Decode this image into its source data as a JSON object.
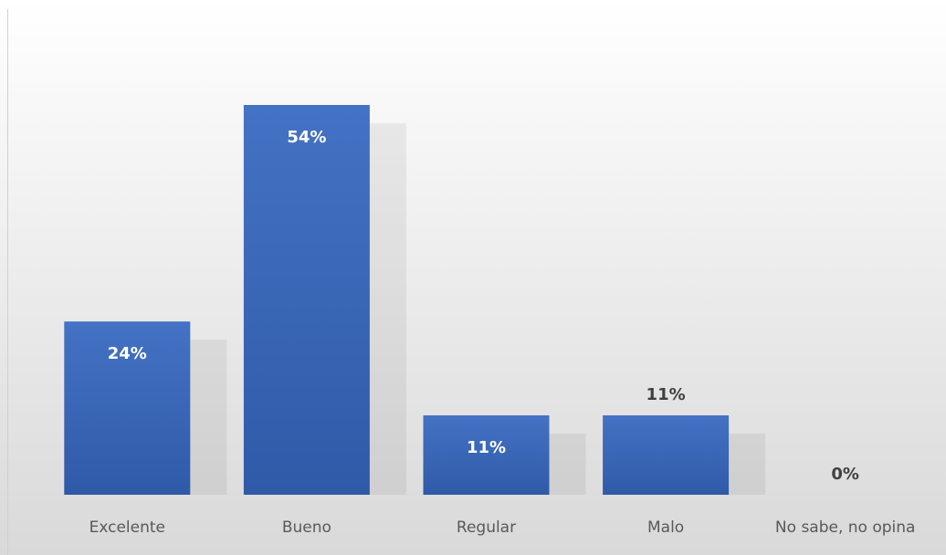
{
  "chart_data": {
    "type": "bar",
    "categories": [
      "Excelente",
      "Bueno",
      "Regular",
      "Malo",
      "No sabe, no opina"
    ],
    "values": [
      24,
      54,
      11,
      11,
      0
    ],
    "value_labels": [
      "24%",
      "54%",
      "11%",
      "11%",
      "0%"
    ],
    "label_position": [
      "inside",
      "inside",
      "inside",
      "outside",
      "outside"
    ],
    "color": "#4472c4"
  }
}
